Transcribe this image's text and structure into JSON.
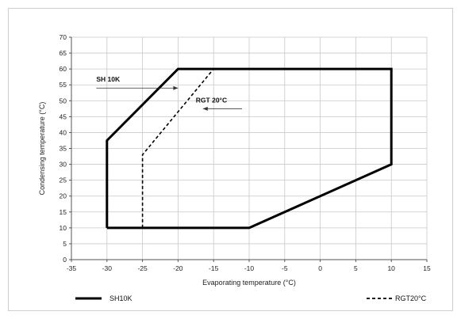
{
  "chart_data": {
    "type": "line",
    "title": "",
    "xlabel": "Evaporating temperature (°C)",
    "ylabel": "Condensing temperature (°C)",
    "xlim": [
      -35,
      15
    ],
    "ylim": [
      0,
      70
    ],
    "x_ticks": [
      -35,
      -30,
      -25,
      -20,
      -15,
      -10,
      -5,
      0,
      5,
      10,
      15
    ],
    "y_ticks": [
      0,
      5,
      10,
      15,
      20,
      25,
      30,
      35,
      40,
      45,
      50,
      55,
      60,
      65,
      70
    ],
    "grid": true,
    "series": [
      {
        "name": "SH10K",
        "style": "solid",
        "x": [
          -30,
          -30,
          -20,
          10,
          10,
          -10,
          -30
        ],
        "y": [
          10,
          37.5,
          60,
          60,
          30,
          10,
          10
        ]
      },
      {
        "name": "RGT20°C",
        "style": "dashed",
        "x": [
          -25,
          -25,
          -15
        ],
        "y": [
          10,
          33,
          60
        ]
      }
    ],
    "annotations": [
      {
        "text": "SH 10K",
        "arrow_to": [
          -20,
          54
        ]
      },
      {
        "text": "RGT 20°C",
        "arrow_to": [
          -16.5,
          47.5
        ]
      }
    ],
    "legend": {
      "placement": "bottom",
      "entries": [
        {
          "label": "SH10K",
          "style": "solid"
        },
        {
          "label": "RGT20°C",
          "style": "dashed"
        }
      ]
    },
    "colors": {
      "line": "#000000",
      "grid": "#c8c8c8",
      "axis": "#555555"
    }
  }
}
